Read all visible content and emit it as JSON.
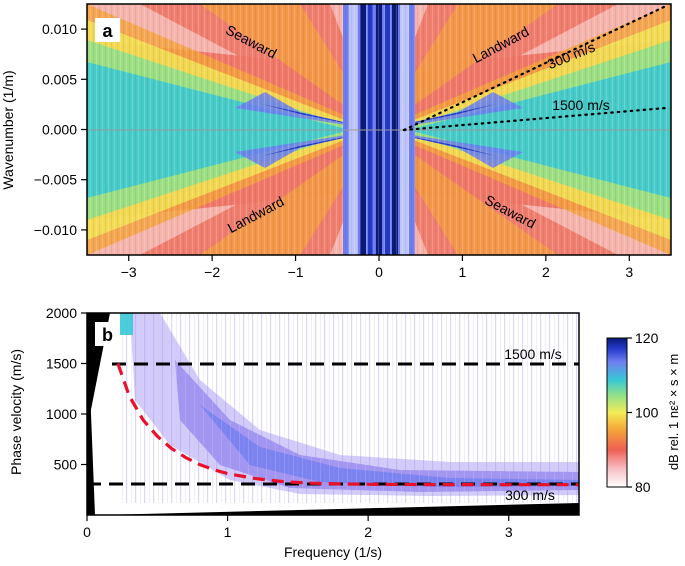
{
  "chart_data": [
    {
      "type": "heatmap",
      "panel_label": "a",
      "xlabel": "",
      "ylabel": "Wavenumber (1/m)",
      "xlim": [
        -3.5,
        3.5
      ],
      "ylim": [
        -0.0125,
        0.0125
      ],
      "xticks": [
        -3,
        -2,
        -1,
        0,
        1,
        2,
        3
      ],
      "xtick_labels": [
        "−3",
        "−2",
        "−1",
        "0",
        "1",
        "2",
        "3"
      ],
      "yticks": [
        0.01,
        0.005,
        0.0,
        -0.005,
        -0.01
      ],
      "ytick_labels": [
        "0.010",
        "0.005",
        "0.000",
        "−0.005",
        "−0.010"
      ],
      "annotations": [
        {
          "text": "Seaward",
          "x": -1.95,
          "y": 0.0088,
          "rotation": 28
        },
        {
          "text": "Landward",
          "x": 1.45,
          "y": 0.0088,
          "rotation": -28
        },
        {
          "text": "Landward",
          "x": -1.4,
          "y": -0.0088,
          "rotation": -28
        },
        {
          "text": "Seaward",
          "x": 1.8,
          "y": -0.0088,
          "rotation": 28
        },
        {
          "text": "300 m/s",
          "x": 2.35,
          "y": 0.0082,
          "rotation": -22
        },
        {
          "text": "1500 m/s",
          "x": 2.2,
          "y": 0.0025,
          "rotation": 0
        }
      ],
      "reference_lines": [
        {
          "label": "300 m/s",
          "velocity_m_s": 300,
          "x_range": [
            0.3,
            3.5
          ]
        },
        {
          "label": "1500 m/s",
          "velocity_m_s": 1500,
          "x_range": [
            0.3,
            3.5
          ]
        }
      ]
    },
    {
      "type": "heatmap",
      "panel_label": "b",
      "xlabel": "Frequency (1/s)",
      "ylabel": "Phase velocity (m/s)",
      "xlim": [
        0,
        3.5
      ],
      "ylim": [
        0,
        2000
      ],
      "xticks": [
        0,
        1,
        2,
        3
      ],
      "xtick_labels": [
        "0",
        "1",
        "2",
        "3"
      ],
      "yticks": [
        2000,
        1500,
        1000,
        500
      ],
      "ytick_labels": [
        "2000",
        "1500",
        "1000",
        "500"
      ],
      "horizontal_lines": [
        {
          "label": "1500 m/s",
          "value": 1500
        },
        {
          "label": "300 m/s",
          "value": 300
        }
      ],
      "dispersion_curve": {
        "frequency": [
          0.22,
          0.3,
          0.4,
          0.5,
          0.6,
          0.7,
          0.8,
          0.9,
          1.0,
          1.2,
          1.4,
          1.6,
          1.8,
          2.0,
          2.5,
          3.0,
          3.5
        ],
        "velocity": [
          1500,
          1180,
          940,
          780,
          660,
          570,
          500,
          450,
          410,
          360,
          330,
          315,
          308,
          304,
          301,
          300,
          300
        ],
        "color": "#e8102a"
      },
      "colorbar": {
        "label": "dB rel. 1 nε² × s × m",
        "range": [
          80,
          120
        ],
        "ticks": [
          120,
          100,
          80
        ]
      }
    }
  ]
}
